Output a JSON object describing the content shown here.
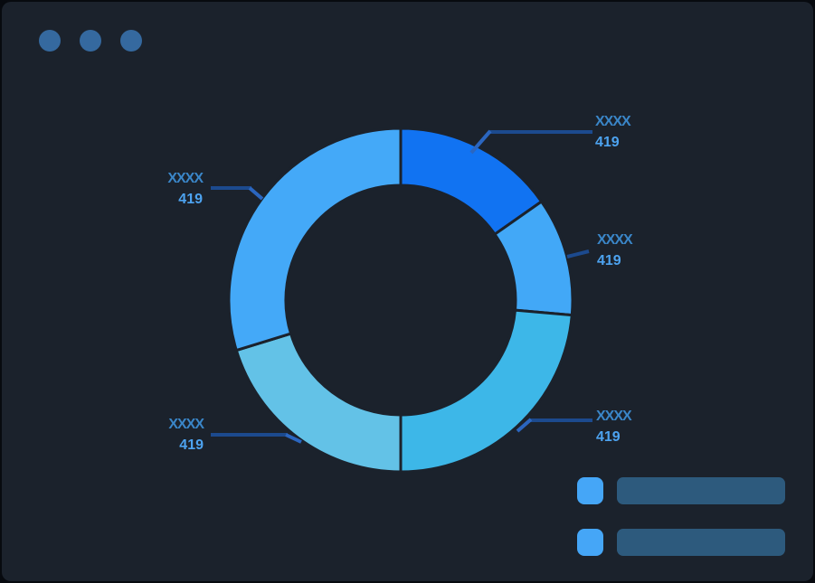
{
  "window": {
    "controls": [
      {
        "name": "window-control-dot"
      },
      {
        "name": "window-control-dot"
      },
      {
        "name": "window-control-dot"
      }
    ]
  },
  "colors": {
    "outer_background": "#070a0f",
    "background": "#1b222c",
    "window_dot": "#35699f",
    "callout_line": "#1c4a8e",
    "callout_tick": "#2b66c0",
    "label_name": "#3a86c8",
    "label_value": "#4da3f0",
    "legend_swatch": "#45a6f7",
    "legend_bar": "#2d5a7d"
  },
  "chart_data": {
    "type": "pie",
    "subtype": "donut",
    "title": "",
    "legend_position": "bottom-right",
    "inner_radius_ratio": 0.67,
    "segments": [
      {
        "label": "XXXX",
        "value": 419,
        "color": "#1173f2",
        "start_deg": 0,
        "sweep_deg": 55,
        "callout": "top-right"
      },
      {
        "label": "XXXX",
        "value": 419,
        "color": "#42a8f7",
        "start_deg": 55,
        "sweep_deg": 40,
        "callout": "right"
      },
      {
        "label": "XXXX",
        "value": 419,
        "color": "#3db7e8",
        "start_deg": 95,
        "sweep_deg": 85,
        "callout": "bottom-right"
      },
      {
        "label": "XXXX",
        "value": 419,
        "color": "#63c2e7",
        "start_deg": 180,
        "sweep_deg": 73,
        "callout": "bottom-left"
      },
      {
        "label": "XXXX",
        "value": 419,
        "color": "#44a9f8",
        "start_deg": 253,
        "sweep_deg": 107,
        "callout": "top-left"
      }
    ]
  },
  "legend": {
    "items": [
      {
        "type": "placeholder-bar"
      },
      {
        "type": "placeholder-bar"
      }
    ]
  }
}
